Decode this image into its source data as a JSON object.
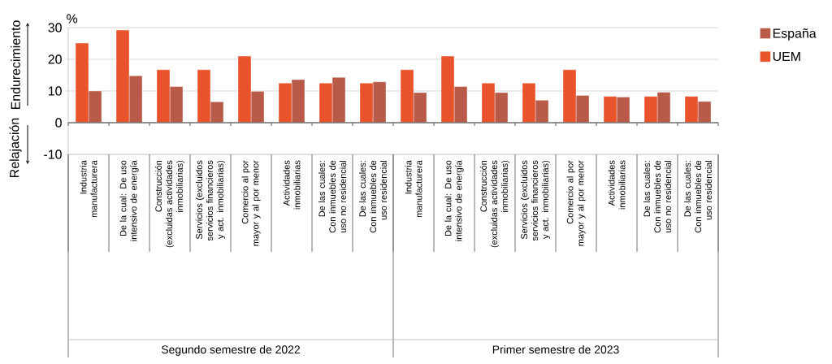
{
  "chart_data": {
    "type": "bar",
    "ylabel": "%",
    "categories": [
      "Industria manufacturera",
      "De la cual: De uso intensivo de energía",
      "Construcción (excluidas actividades inmobiliarias)",
      "Servicios (excluidos servicios financieros y act. inmobiliarias)",
      "Comercio al por mayor y al por menor",
      "Actividades inmobiliarias",
      "De las cuales: Con inmuebles de uso no residencial",
      "De las cuales: Con inmuebles de uso residencial",
      "Industria manufacturera",
      "De la cual: De uso intensivo de energía",
      "Construcción (excluidas actividades inmobiliarias)",
      "Servicios (excluidos servicios financieros y act. inmobiliarias)",
      "Comercio al por mayor y al por menor",
      "Actividades inmobiliarias",
      "De las cuales: Con inmuebles de uso no residencial",
      "De las cuales: Con inmuebles de uso residencial"
    ],
    "series": [
      {
        "name": "España",
        "color": "#b85a48",
        "values": [
          10.0,
          14.8,
          11.4,
          6.6,
          9.9,
          13.6,
          14.3,
          12.9,
          9.5,
          11.4,
          9.5,
          7.1,
          8.6,
          8.1,
          9.6,
          6.7
        ]
      },
      {
        "name": "UEM",
        "color": "#e8532b",
        "values": [
          25.1,
          29.2,
          16.7,
          16.7,
          21.0,
          12.5,
          12.5,
          12.5,
          16.7,
          21.0,
          12.5,
          12.5,
          16.7,
          8.3,
          8.3,
          8.3
        ]
      }
    ],
    "ylim": [
      -10,
      30
    ],
    "yticks": [
      -10,
      0,
      10,
      20,
      30
    ],
    "grid": "y",
    "legend": "top right",
    "annotations": [
      "Endurecimiento",
      "Relajación",
      "Segundo semestre de 2022",
      "Primer semestre de 2023"
    ]
  }
}
